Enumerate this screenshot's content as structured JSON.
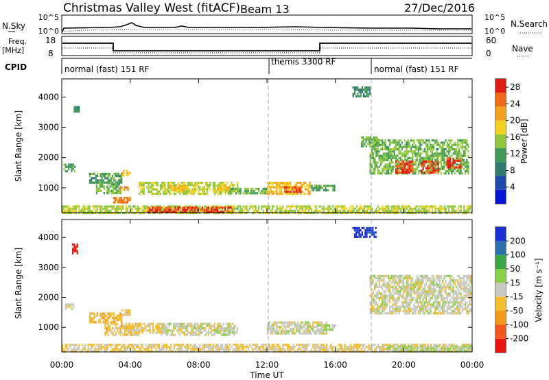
{
  "header": {
    "station": "Christmas Valley West (fitACF)",
    "beam": "Beam 13",
    "date": "27/Dec/2016"
  },
  "top_panels": {
    "noise": {
      "left_label": "N.Sky",
      "right_label": "N.Search",
      "left_ticks": [
        "10^5",
        "10^0"
      ],
      "right_ticks": [
        "10^5",
        "10^0"
      ]
    },
    "freq": {
      "left_label_1": "Freq.",
      "left_label_2": "[MHz]",
      "left_ticks": [
        "18",
        "8"
      ],
      "right_label": "Nave",
      "right_ticks": [
        "60",
        "0"
      ]
    },
    "cpid": {
      "label": "CPID",
      "segments": [
        "normal (fast) 151 RF",
        "themis 3300 RF",
        "normal (fast) 151 RF"
      ]
    }
  },
  "colors": {
    "power": [
      "#0a14d9",
      "#1e4bb0",
      "#2f7a6e",
      "#3f9a55",
      "#8fc83c",
      "#f2d21e",
      "#f5a21a",
      "#ef6a16",
      "#e21b14"
    ],
    "velocity": [
      "#e8160e",
      "#f3571a",
      "#f49a18",
      "#f3be2a",
      "#c9c9c0",
      "#8ad048",
      "#3aa845",
      "#2a6fb0",
      "#1a2fd6"
    ]
  },
  "chart_data": [
    {
      "type": "heatmap",
      "title": "",
      "ylabel": "Slant Range [km]",
      "y_ticks": [
        "1000",
        "2000",
        "3000",
        "4000"
      ],
      "ylim": [
        180,
        4600
      ],
      "colorbar_label": "Power [dB]",
      "colorbar_ticks": [
        "4",
        "8",
        "12",
        "16",
        "20",
        "24",
        "28"
      ],
      "colorbar_range": [
        0,
        30
      ],
      "grid": false,
      "regions": [
        {
          "t": [
            0.1,
            0.8
          ],
          "r": [
            1550,
            1800
          ],
          "v": 12
        },
        {
          "t": [
            0.7,
            1.0
          ],
          "r": [
            3500,
            3700
          ],
          "v": 10
        },
        {
          "t": [
            1.6,
            3.5
          ],
          "r": [
            1200,
            1500
          ],
          "v": 12
        },
        {
          "t": [
            3.5,
            4.0
          ],
          "r": [
            1400,
            1600
          ],
          "v": 20
        },
        {
          "t": [
            2.0,
            3.5
          ],
          "r": [
            850,
            1150
          ],
          "v": 14
        },
        {
          "t": [
            3.3,
            4.0
          ],
          "r": [
            950,
            1050
          ],
          "v": 22
        },
        {
          "t": [
            4.5,
            10.3
          ],
          "r": [
            780,
            1200
          ],
          "v": 16
        },
        {
          "t": [
            6.3,
            7.5
          ],
          "r": [
            900,
            1100
          ],
          "v": 20
        },
        {
          "t": [
            9.0,
            9.8
          ],
          "r": [
            950,
            1100
          ],
          "v": 20
        },
        {
          "t": [
            9.8,
            12.0
          ],
          "r": [
            800,
            1000
          ],
          "v": 14
        },
        {
          "t": [
            12.0,
            14.5
          ],
          "r": [
            780,
            1200
          ],
          "v": 20
        },
        {
          "t": [
            13.0,
            14.0
          ],
          "r": [
            850,
            1050
          ],
          "v": 27
        },
        {
          "t": [
            14.5,
            16.0
          ],
          "r": [
            900,
            1100
          ],
          "v": 12
        },
        {
          "t": [
            0.0,
            24.0
          ],
          "r": [
            200,
            420
          ],
          "v": 16
        },
        {
          "t": [
            5.0,
            10.0
          ],
          "r": [
            200,
            380
          ],
          "v": 27
        },
        {
          "t": [
            3.0,
            4.0
          ],
          "r": [
            550,
            700
          ],
          "v": 24
        },
        {
          "t": [
            17.0,
            18.0
          ],
          "r": [
            4050,
            4350
          ],
          "v": 10
        },
        {
          "t": [
            17.5,
            18.5
          ],
          "r": [
            2400,
            2700
          ],
          "v": 14
        },
        {
          "t": [
            18.0,
            23.8
          ],
          "r": [
            1500,
            2600
          ],
          "v": 14
        },
        {
          "t": [
            19.5,
            20.5
          ],
          "r": [
            1500,
            1900
          ],
          "v": 27
        },
        {
          "t": [
            21.0,
            22.0
          ],
          "r": [
            1500,
            1900
          ],
          "v": 27
        },
        {
          "t": [
            22.5,
            23.3
          ],
          "r": [
            1650,
            2000
          ],
          "v": 27
        }
      ]
    },
    {
      "type": "heatmap",
      "title": "",
      "ylabel": "Slant Range [km]",
      "xlabel": "Time UT",
      "x_ticks": [
        "00:00",
        "04:00",
        "08:00",
        "12:00",
        "16:00",
        "20:00",
        "00:00"
      ],
      "y_ticks": [
        "1000",
        "2000",
        "3000",
        "4000"
      ],
      "ylim": [
        180,
        4600
      ],
      "xlim": [
        0,
        24
      ],
      "colorbar_label": "Velocity [m s⁻¹]",
      "colorbar_ticks": [
        "-200",
        "-100",
        "-50",
        "-15",
        "15",
        "50",
        "100",
        "200"
      ],
      "colorbar_range": [
        -250,
        250
      ],
      "grid": false,
      "regions": [
        {
          "t": [
            0.2,
            0.7
          ],
          "r": [
            1650,
            1800
          ],
          "v": 0
        },
        {
          "t": [
            0.6,
            0.9
          ],
          "r": [
            3500,
            3800
          ],
          "v": -230
        },
        {
          "t": [
            1.6,
            3.5
          ],
          "r": [
            1150,
            1500
          ],
          "v": -60
        },
        {
          "t": [
            3.5,
            4.0
          ],
          "r": [
            1400,
            1600
          ],
          "v": -40
        },
        {
          "t": [
            2.5,
            4.5
          ],
          "r": [
            750,
            1150
          ],
          "v": -50
        },
        {
          "t": [
            4.5,
            6.0
          ],
          "r": [
            800,
            1150
          ],
          "v": -40
        },
        {
          "t": [
            5.8,
            10.3
          ],
          "r": [
            780,
            1150
          ],
          "v": 0
        },
        {
          "t": [
            12.0,
            15.5
          ],
          "r": [
            780,
            1200
          ],
          "v": 0
        },
        {
          "t": [
            15.0,
            16.0
          ],
          "r": [
            950,
            1100
          ],
          "v": 30
        },
        {
          "t": [
            0.0,
            24.0
          ],
          "r": [
            200,
            450
          ],
          "v": -30
        },
        {
          "t": [
            19.0,
            24.0
          ],
          "r": [
            200,
            400
          ],
          "v": 40
        },
        {
          "t": [
            17.0,
            18.4
          ],
          "r": [
            4050,
            4350
          ],
          "v": 220
        },
        {
          "t": [
            18.0,
            24.0
          ],
          "r": [
            1500,
            2750
          ],
          "v": 0
        }
      ]
    }
  ]
}
